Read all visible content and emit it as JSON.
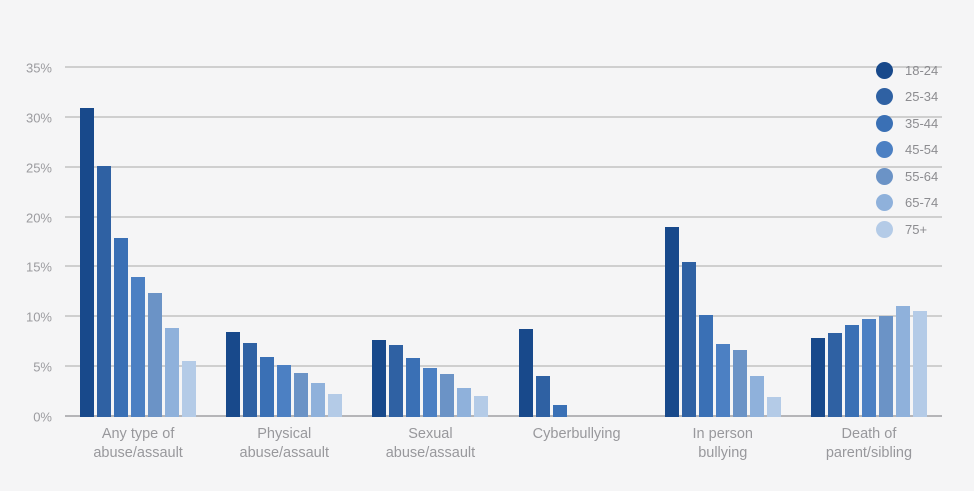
{
  "chart_data": {
    "type": "bar",
    "title": "",
    "xlabel": "",
    "ylabel": "",
    "ylim": [
      0,
      35
    ],
    "y_tick_step": 5,
    "y_tick_suffix": "%",
    "y_ticks": [
      "0%",
      "5%",
      "10%",
      "15%",
      "20%",
      "25%",
      "30%",
      "35%"
    ],
    "grid": true,
    "legend_position": "top-right",
    "categories": [
      [
        "Any type of",
        "abuse/assault"
      ],
      [
        "Physical",
        "abuse/assault"
      ],
      [
        "Sexual",
        "abuse/assault"
      ],
      [
        "Cyberbullying"
      ],
      [
        "In person",
        "bullying"
      ],
      [
        "Death of",
        "parent/sibling"
      ]
    ],
    "series": [
      {
        "name": "18-24",
        "color": "#18498B",
        "values": [
          31.0,
          8.5,
          7.7,
          8.8,
          19.1,
          7.9
        ]
      },
      {
        "name": "25-34",
        "color": "#2F61A3",
        "values": [
          25.2,
          7.4,
          7.2,
          4.1,
          15.5,
          8.4
        ]
      },
      {
        "name": "35-44",
        "color": "#3A70B5",
        "values": [
          18.0,
          6.0,
          5.9,
          1.2,
          10.2,
          9.2
        ]
      },
      {
        "name": "45-54",
        "color": "#4C80C3",
        "values": [
          14.0,
          5.2,
          4.9,
          0,
          7.3,
          9.8
        ]
      },
      {
        "name": "55-64",
        "color": "#6B93C6",
        "values": [
          12.4,
          4.4,
          4.3,
          0,
          6.7,
          10.1
        ]
      },
      {
        "name": "65-74",
        "color": "#8FB1DB",
        "values": [
          8.9,
          3.4,
          2.9,
          0,
          4.1,
          11.1
        ]
      },
      {
        "name": "75+",
        "color": "#B4CBE7",
        "values": [
          5.6,
          2.3,
          2.1,
          0,
          2.0,
          10.6
        ]
      }
    ]
  },
  "colors": {
    "background": "#F5F5F6",
    "gridline": "#CFCFCF",
    "axis_line": "#B5B5B8",
    "tick_text": "#9B9B9F",
    "category_text": "#98989C",
    "legend_text": "#8C8C90"
  }
}
